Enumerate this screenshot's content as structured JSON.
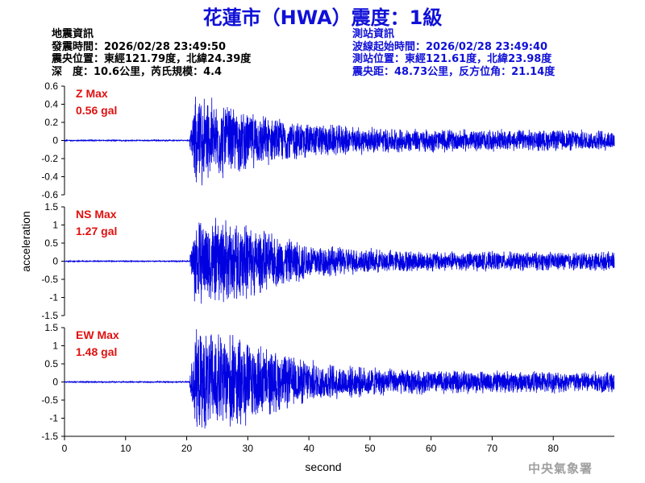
{
  "title": "花蓮市（HWA）震度：1級",
  "quake_info": {
    "heading": "地震資訊",
    "origin_time": "發震時間：2026/02/28 23:49:50",
    "epicenter": "震央位置：東經121.79度，北緯24.39度",
    "depth_magnitude": "深　度：10.6公里，芮氏規模：4.4"
  },
  "station_info": {
    "heading": "測站資訊",
    "wave_start": "波線起始時間：2026/02/28 23:49:40",
    "station_location": "測站位置：東經121.61度，北緯23.98度",
    "distance_azimuth": "震央距：48.73公里，反方位角：21.14度"
  },
  "agency": "中央氣象署",
  "colors": {
    "title": "#1010d8",
    "trace": "#0000e0",
    "max_label": "#e01010",
    "station_text": "#1010d8"
  },
  "chart_data": {
    "type": "line",
    "xlabel": "second",
    "ylabel": "acceleration",
    "xlim": [
      0,
      90
    ],
    "x_ticks": [
      0,
      10,
      20,
      30,
      40,
      50,
      60,
      70,
      80
    ],
    "grid": false,
    "onset_second": 20.5,
    "panels": [
      {
        "name": "Z",
        "max_label": "Z Max",
        "max_value": "0.56 gal",
        "peak": 0.56,
        "ylim": [
          -0.6,
          0.6
        ],
        "y_ticks": [
          -0.6,
          -0.4,
          -0.2,
          0,
          0.2,
          0.4,
          0.6
        ],
        "y_tick_labels": [
          "-0.6",
          "-0.4",
          "-0.2",
          "0",
          "0.2",
          "0.4",
          "0.6"
        ]
      },
      {
        "name": "NS",
        "max_label": "NS Max",
        "max_value": "1.27 gal",
        "peak": 1.27,
        "ylim": [
          -1.5,
          1.5
        ],
        "y_ticks": [
          -1.5,
          -1,
          -0.5,
          0,
          0.5,
          1,
          1.5
        ],
        "y_tick_labels": [
          "-1.5",
          "-1",
          "-0.5",
          "0",
          "0.5",
          "1",
          "1.5"
        ]
      },
      {
        "name": "EW",
        "max_label": "EW Max",
        "max_value": "1.48 gal",
        "peak": 1.48,
        "ylim": [
          -1.5,
          1.5
        ],
        "y_ticks": [
          -1.5,
          -1,
          -0.5,
          0,
          0.5,
          1,
          1.5
        ],
        "y_tick_labels": [
          "-1.5",
          "-1",
          "-0.5",
          "0",
          "0.5",
          "1",
          "1.5"
        ]
      }
    ]
  }
}
